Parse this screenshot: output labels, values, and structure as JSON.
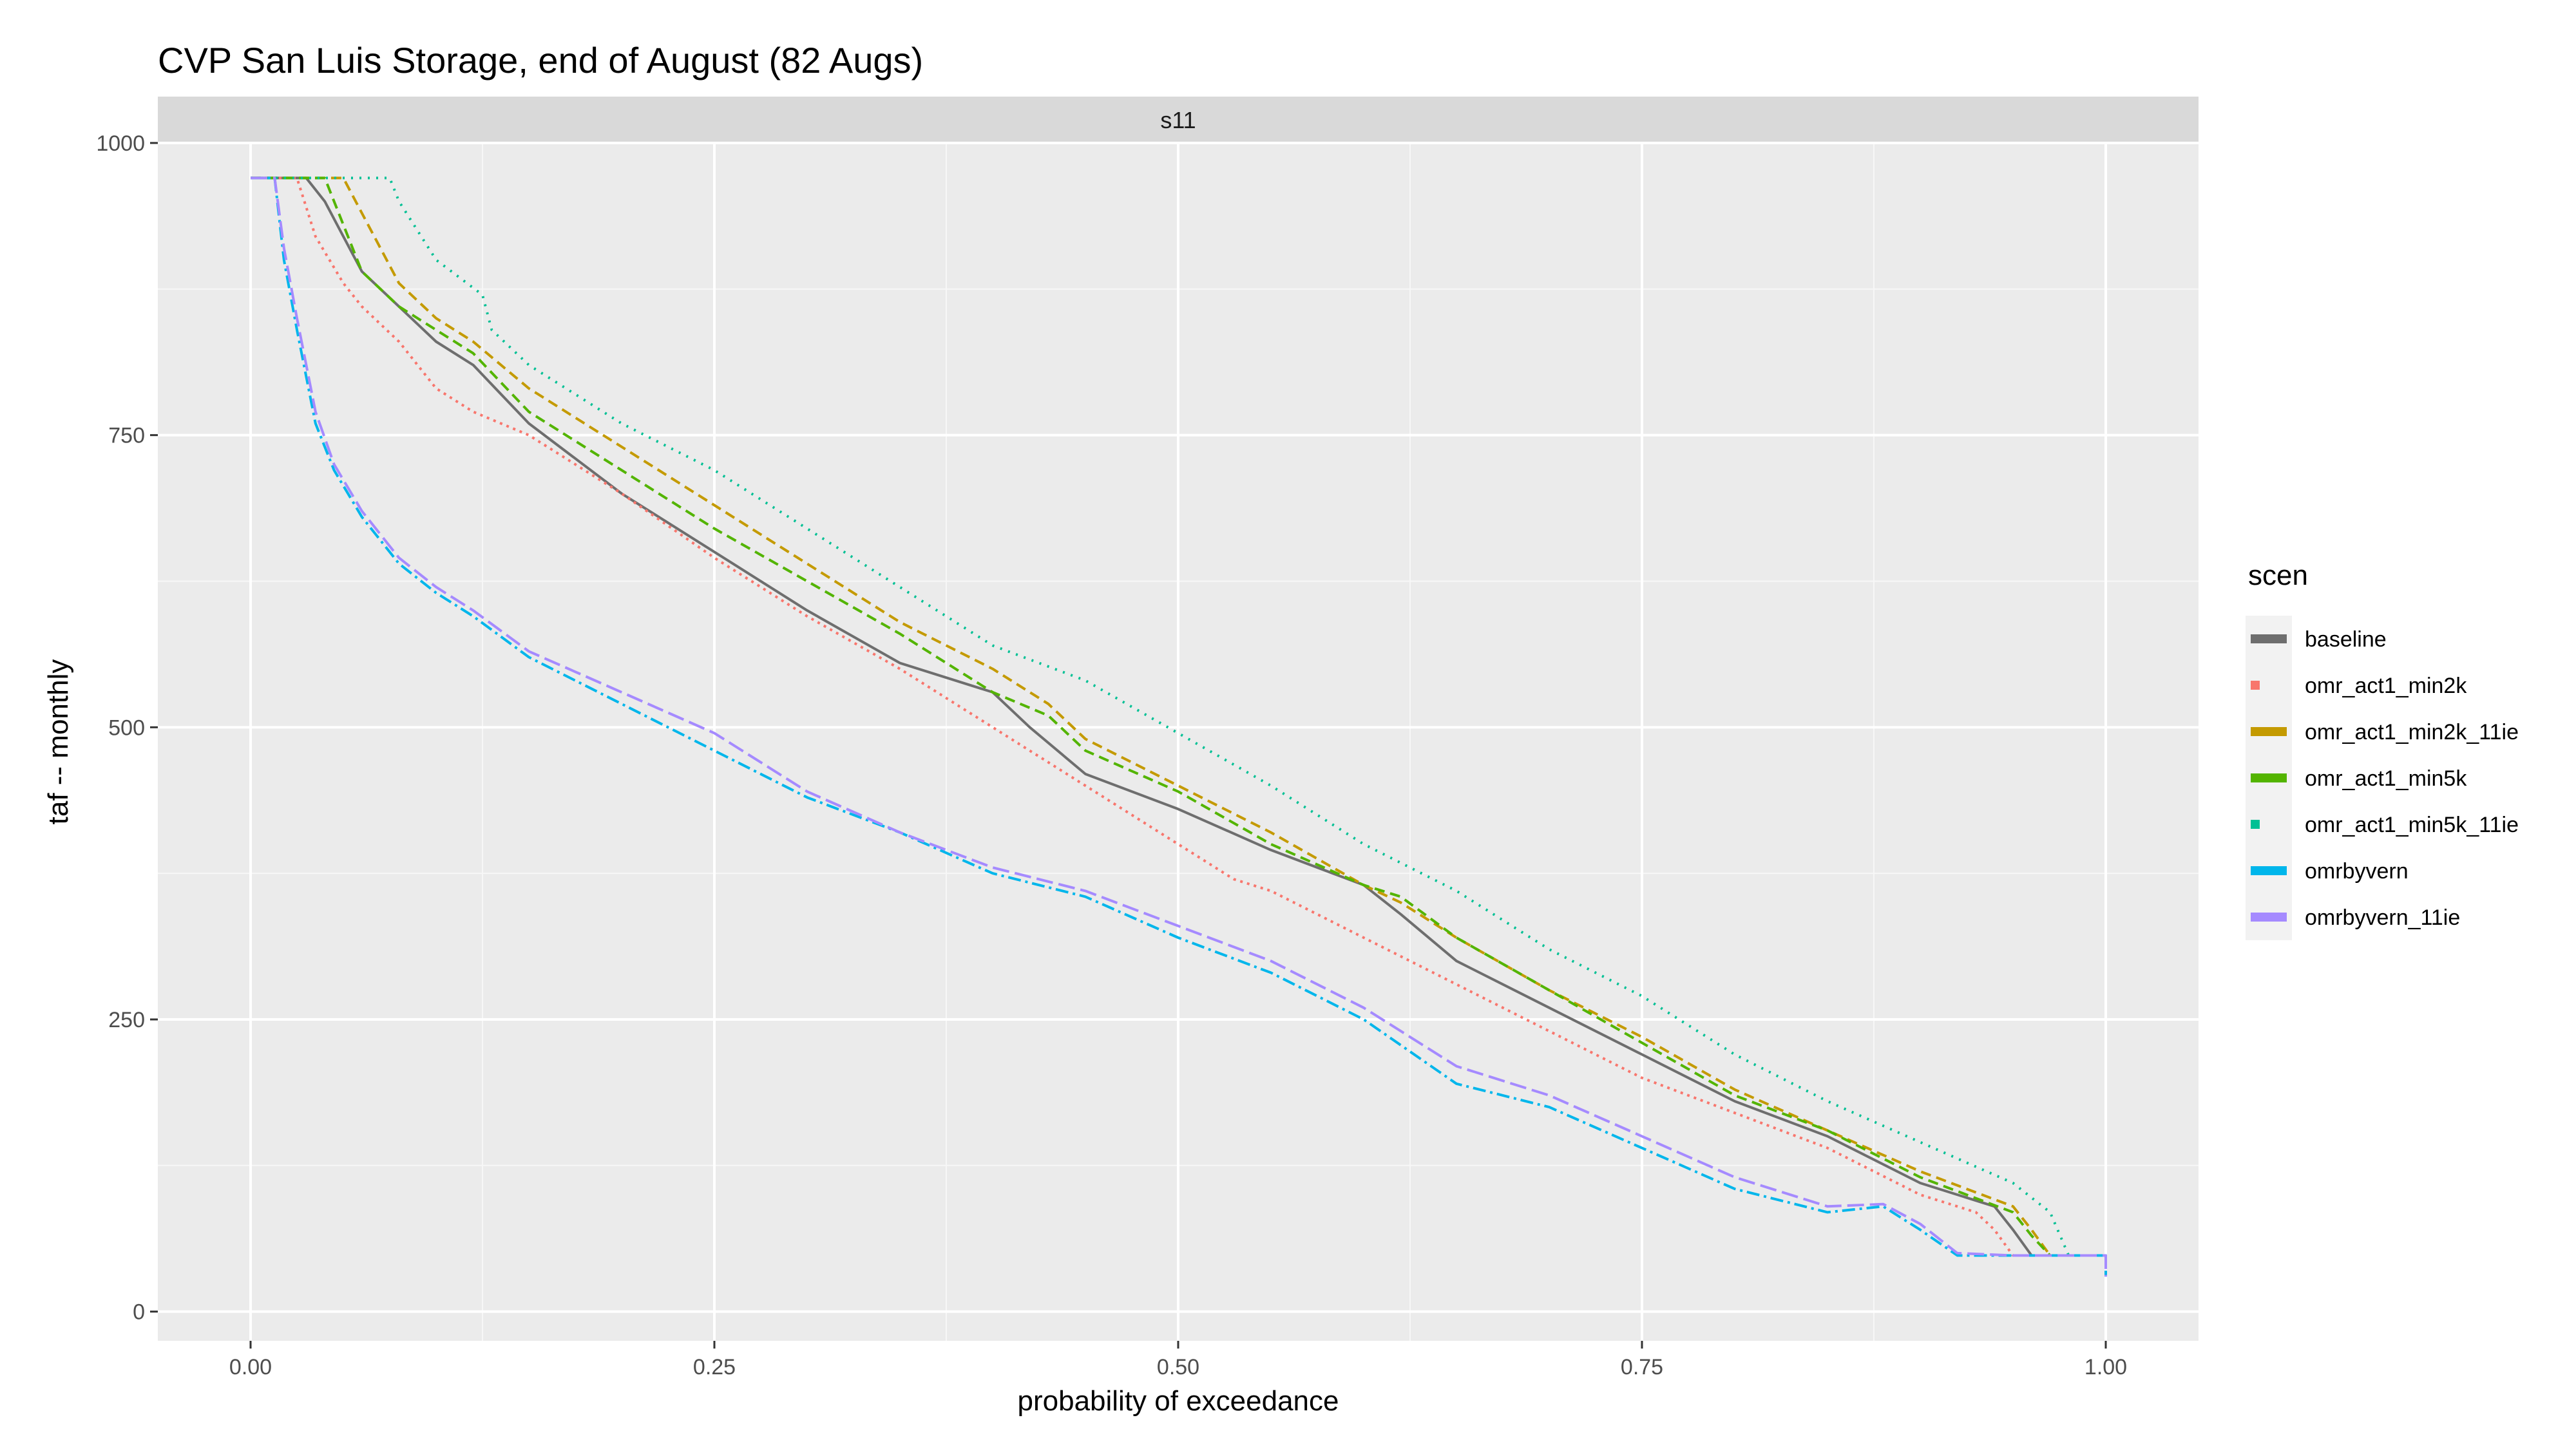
{
  "chart_data": {
    "type": "line",
    "title": "CVP San Luis Storage, end of August (82 Augs)",
    "facet_label": "s11",
    "xlabel": "probability of exceedance",
    "ylabel": "taf -- monthly",
    "xlim": [
      -0.05,
      1.05
    ],
    "ylim": [
      -25,
      1000
    ],
    "x_ticks": [
      0.0,
      0.25,
      0.5,
      0.75,
      1.0
    ],
    "x_tick_labels": [
      "0.00",
      "0.25",
      "0.50",
      "0.75",
      "1.00"
    ],
    "y_ticks": [
      0,
      250,
      500,
      750,
      1000
    ],
    "y_tick_labels": [
      "0",
      "250",
      "500",
      "750",
      "1000"
    ],
    "x_minor": [
      0.125,
      0.375,
      0.625,
      0.875
    ],
    "y_minor": [
      125,
      375,
      625,
      875
    ],
    "grid": true,
    "legend": {
      "title": "scen",
      "position": "right"
    },
    "series": [
      {
        "name": "baseline",
        "color": "#6e6e6e",
        "dash": "solid",
        "x": [
          0.0,
          0.03,
          0.04,
          0.05,
          0.06,
          0.08,
          0.1,
          0.12,
          0.15,
          0.2,
          0.25,
          0.3,
          0.35,
          0.4,
          0.42,
          0.45,
          0.5,
          0.55,
          0.6,
          0.62,
          0.65,
          0.7,
          0.75,
          0.8,
          0.85,
          0.9,
          0.94,
          0.95,
          0.96,
          1.0
        ],
        "y": [
          970,
          970,
          950,
          920,
          890,
          860,
          830,
          810,
          760,
          700,
          650,
          600,
          555,
          530,
          500,
          460,
          430,
          395,
          365,
          340,
          300,
          260,
          220,
          180,
          150,
          110,
          90,
          70,
          48,
          48
        ]
      },
      {
        "name": "omr_act1_min2k",
        "color": "#f8766d",
        "dash": "4,7",
        "x": [
          0.0,
          0.025,
          0.035,
          0.05,
          0.06,
          0.08,
          0.1,
          0.12,
          0.15,
          0.2,
          0.25,
          0.3,
          0.35,
          0.4,
          0.42,
          0.45,
          0.5,
          0.53,
          0.55,
          0.6,
          0.65,
          0.7,
          0.75,
          0.8,
          0.85,
          0.9,
          0.93,
          0.94,
          0.95,
          1.0
        ],
        "y": [
          970,
          970,
          920,
          880,
          860,
          830,
          790,
          770,
          750,
          700,
          645,
          595,
          550,
          500,
          480,
          450,
          400,
          370,
          360,
          320,
          280,
          240,
          200,
          170,
          140,
          100,
          85,
          70,
          48,
          48
        ]
      },
      {
        "name": "omr_act1_min2k_11ie",
        "color": "#c49a00",
        "dash": "16,9",
        "x": [
          0.0,
          0.05,
          0.06,
          0.08,
          0.1,
          0.12,
          0.15,
          0.2,
          0.25,
          0.3,
          0.35,
          0.4,
          0.43,
          0.45,
          0.5,
          0.55,
          0.6,
          0.62,
          0.65,
          0.7,
          0.75,
          0.8,
          0.85,
          0.9,
          0.95,
          0.96,
          0.97,
          1.0
        ],
        "y": [
          970,
          970,
          940,
          880,
          850,
          830,
          790,
          740,
          690,
          640,
          590,
          550,
          520,
          490,
          450,
          410,
          365,
          350,
          320,
          275,
          235,
          190,
          155,
          120,
          90,
          70,
          48,
          48
        ]
      },
      {
        "name": "omr_act1_min5k",
        "color": "#53b400",
        "dash": "16,9",
        "x": [
          0.0,
          0.04,
          0.05,
          0.06,
          0.08,
          0.1,
          0.12,
          0.15,
          0.2,
          0.25,
          0.3,
          0.35,
          0.4,
          0.43,
          0.45,
          0.5,
          0.55,
          0.6,
          0.62,
          0.65,
          0.7,
          0.75,
          0.8,
          0.85,
          0.9,
          0.95,
          0.96,
          0.97,
          1.0
        ],
        "y": [
          970,
          970,
          930,
          890,
          860,
          840,
          820,
          770,
          720,
          670,
          625,
          580,
          530,
          510,
          480,
          445,
          400,
          365,
          355,
          320,
          275,
          230,
          185,
          155,
          115,
          85,
          65,
          48,
          48
        ]
      },
      {
        "name": "omr_act1_min5k_11ie",
        "color": "#00c094",
        "dash": "3,10",
        "x": [
          0.0,
          0.075,
          0.08,
          0.1,
          0.125,
          0.13,
          0.15,
          0.2,
          0.25,
          0.3,
          0.35,
          0.4,
          0.45,
          0.5,
          0.55,
          0.6,
          0.65,
          0.7,
          0.75,
          0.8,
          0.85,
          0.9,
          0.95,
          0.97,
          0.98,
          1.0
        ],
        "y": [
          970,
          970,
          950,
          900,
          870,
          840,
          810,
          760,
          720,
          670,
          620,
          570,
          540,
          495,
          450,
          400,
          360,
          310,
          270,
          220,
          180,
          145,
          110,
          85,
          48,
          48
        ]
      },
      {
        "name": "omrbyvern",
        "color": "#00b6eb",
        "dash": "20,7,4,7",
        "x": [
          0.0,
          0.013,
          0.018,
          0.025,
          0.03,
          0.035,
          0.045,
          0.06,
          0.08,
          0.1,
          0.12,
          0.15,
          0.2,
          0.25,
          0.3,
          0.35,
          0.4,
          0.45,
          0.5,
          0.55,
          0.6,
          0.65,
          0.7,
          0.75,
          0.8,
          0.85,
          0.88,
          0.9,
          0.92,
          0.95,
          1.0,
          1.0
        ],
        "y": [
          970,
          970,
          900,
          840,
          800,
          760,
          720,
          680,
          640,
          615,
          595,
          560,
          520,
          480,
          440,
          410,
          375,
          355,
          320,
          290,
          250,
          195,
          175,
          140,
          105,
          85,
          90,
          70,
          48,
          48,
          48,
          30
        ]
      },
      {
        "name": "omrbyvern_11ie",
        "color": "#a58aff",
        "dash": "26,9",
        "x": [
          0.0,
          0.013,
          0.018,
          0.025,
          0.03,
          0.035,
          0.045,
          0.06,
          0.08,
          0.1,
          0.12,
          0.15,
          0.2,
          0.25,
          0.3,
          0.35,
          0.4,
          0.45,
          0.5,
          0.55,
          0.6,
          0.65,
          0.7,
          0.75,
          0.8,
          0.85,
          0.88,
          0.9,
          0.92,
          0.95,
          1.0,
          1.0
        ],
        "y": [
          970,
          970,
          910,
          850,
          810,
          770,
          725,
          685,
          645,
          620,
          600,
          565,
          530,
          495,
          445,
          410,
          380,
          360,
          330,
          300,
          260,
          210,
          185,
          150,
          115,
          90,
          92,
          75,
          50,
          48,
          48,
          30
        ]
      }
    ]
  }
}
